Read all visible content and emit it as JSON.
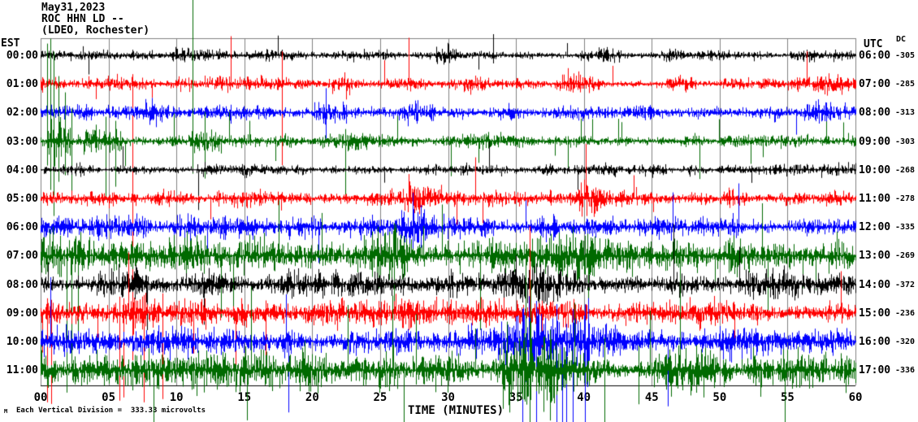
{
  "header": {
    "date": "May31,2023",
    "station": "ROC HHN LD --",
    "network": "(LDEO, Rochester)"
  },
  "axes": {
    "left_timezone_label": "EST",
    "right_timezone_label": "UTC",
    "dc_column_label": "DC",
    "xlabel": "TIME (MINUTES)",
    "x_ticks": [
      "00",
      "05",
      "10",
      "15",
      "20",
      "25",
      "30",
      "35",
      "40",
      "45",
      "50",
      "55",
      "60"
    ]
  },
  "footer": {
    "scale_note": "Each Vertical Division =  333.33 microvolts",
    "logo_mark": "M"
  },
  "colors": {
    "background": "#ffffff",
    "grid": "#808080",
    "axis": "#000000",
    "trace_cycle": [
      "#000000",
      "#ff0000",
      "#0000ff",
      "#006a00"
    ]
  },
  "chart_data": {
    "type": "line",
    "subtype": "helicorder-seismogram",
    "x_range_minutes": [
      0,
      60
    ],
    "minutes_per_row": 60,
    "row_spacing_px": 35.2,
    "note": "12 one-hour seismic trace rows, colors cycling black/red/blue/green; amplitudes and bursts are envelope estimates read from the plot",
    "rows": [
      {
        "est": "00:00",
        "utc": "06:00",
        "dc": "-305",
        "color": "#000000",
        "amp": 7,
        "tail": 0.004,
        "bursts": [
          {
            "s": 9.5,
            "e": 11,
            "m": 1.8
          },
          {
            "s": 29,
            "e": 31,
            "m": 1.6
          },
          {
            "s": 41,
            "e": 43,
            "m": 1.5
          },
          {
            "s": 55,
            "e": 57,
            "m": 1.6
          }
        ],
        "spikes": [
          {
            "min": 33.3,
            "up": 26,
            "down": 10
          }
        ]
      },
      {
        "est": "01:00",
        "utc": "07:00",
        "dc": "-285",
        "color": "#ff0000",
        "amp": 8,
        "tail": 0.004,
        "bursts": [
          {
            "s": 4.5,
            "e": 6,
            "m": 1.7
          },
          {
            "s": 12,
            "e": 14,
            "m": 1.8
          },
          {
            "s": 21,
            "e": 23,
            "m": 1.7
          },
          {
            "s": 31,
            "e": 33,
            "m": 1.6
          },
          {
            "s": 38,
            "e": 40,
            "m": 1.7
          },
          {
            "s": 47,
            "e": 49,
            "m": 1.6
          },
          {
            "s": 57,
            "e": 59,
            "m": 1.5
          }
        ],
        "spikes": [
          {
            "min": 6.78,
            "up": 12,
            "down": 340
          },
          {
            "min": 17.76,
            "up": 40,
            "down": 100
          }
        ]
      },
      {
        "est": "02:00",
        "utc": "08:00",
        "dc": "-313",
        "color": "#0000ff",
        "amp": 9,
        "tail": 0.004,
        "bursts": [
          {
            "s": 7,
            "e": 9,
            "m": 1.5
          },
          {
            "s": 20,
            "e": 22.5,
            "m": 2.2
          },
          {
            "s": 27,
            "e": 29,
            "m": 1.5
          },
          {
            "s": 43,
            "e": 45,
            "m": 1.4
          },
          {
            "s": 56,
            "e": 58,
            "m": 1.5
          }
        ],
        "spikes": [
          {
            "min": 21.0,
            "up": 30,
            "down": 32
          }
        ]
      },
      {
        "est": "03:00",
        "utc": "09:00",
        "dc": "-303",
        "color": "#006a00",
        "amp": 8,
        "tail": 0.012,
        "bursts": [
          {
            "s": 0.3,
            "e": 2.2,
            "m": 3.2
          },
          {
            "s": 3,
            "e": 6,
            "m": 2.4
          },
          {
            "s": 11,
            "e": 13.5,
            "m": 2.0
          },
          {
            "s": 22,
            "e": 24,
            "m": 1.6
          },
          {
            "s": 31,
            "e": 33,
            "m": 1.5
          },
          {
            "s": 47,
            "e": 49,
            "m": 1.4
          }
        ],
        "spikes": [
          {
            "min": 0.5,
            "up": 120,
            "down": 30
          },
          {
            "min": 0.72,
            "up": 126,
            "down": 60
          },
          {
            "min": 0.95,
            "up": 110,
            "down": 92
          },
          {
            "min": 1.3,
            "up": 80,
            "down": 50
          },
          {
            "min": 1.8,
            "up": 60,
            "down": 42
          },
          {
            "min": 2.3,
            "up": 40,
            "down": 62
          },
          {
            "min": 4.8,
            "up": 30,
            "down": 72
          },
          {
            "min": 5.5,
            "up": 25,
            "down": 56
          },
          {
            "min": 11.19,
            "up": 178,
            "down": 40
          },
          {
            "min": 12.1,
            "up": 36,
            "down": 46
          }
        ]
      },
      {
        "est": "04:00",
        "utc": "10:00",
        "dc": "-268",
        "color": "#000000",
        "amp": 7,
        "tail": 0.004,
        "bursts": [
          {
            "s": 11.5,
            "e": 13,
            "m": 1.8
          },
          {
            "s": 21,
            "e": 22,
            "m": 1.4
          },
          {
            "s": 33,
            "e": 34.5,
            "m": 1.5
          }
        ],
        "spikes": []
      },
      {
        "est": "05:00",
        "utc": "11:00",
        "dc": "-278",
        "color": "#ff0000",
        "amp": 10,
        "tail": 0.005,
        "bursts": [
          {
            "s": 5,
            "e": 7,
            "m": 1.5
          },
          {
            "s": 16,
            "e": 18,
            "m": 1.5
          },
          {
            "s": 27,
            "e": 29.5,
            "m": 1.8
          },
          {
            "s": 39.5,
            "e": 41.5,
            "m": 1.7
          },
          {
            "s": 50,
            "e": 52,
            "m": 1.5
          }
        ],
        "spikes": []
      },
      {
        "est": "06:00",
        "utc": "12:00",
        "dc": "-335",
        "color": "#0000ff",
        "amp": 13,
        "tail": 0.006,
        "bursts": [
          {
            "s": 10,
            "e": 12,
            "m": 1.4
          },
          {
            "s": 26.5,
            "e": 28.5,
            "m": 2.3
          },
          {
            "s": 36,
            "e": 38,
            "m": 1.5
          },
          {
            "s": 47,
            "e": 49,
            "m": 1.4
          },
          {
            "s": 55,
            "e": 57,
            "m": 1.5
          }
        ],
        "spikes": [
          {
            "min": 27.4,
            "up": 42,
            "down": 40
          }
        ]
      },
      {
        "est": "07:00",
        "utc": "13:00",
        "dc": "-269",
        "color": "#006a00",
        "amp": 22,
        "tail": 0.015,
        "bursts": [
          {
            "s": 8,
            "e": 10,
            "m": 1.3
          },
          {
            "s": 24,
            "e": 27,
            "m": 1.5
          },
          {
            "s": 33,
            "e": 41,
            "m": 1.6
          },
          {
            "s": 50,
            "e": 53,
            "m": 1.3
          }
        ],
        "spikes": [
          {
            "min": 26.0,
            "up": 40,
            "down": 60
          }
        ]
      },
      {
        "est": "08:00",
        "utc": "14:00",
        "dc": "-372",
        "color": "#000000",
        "amp": 16,
        "tail": 0.008,
        "bursts": [
          {
            "s": 5,
            "e": 8,
            "m": 1.3
          },
          {
            "s": 20,
            "e": 23,
            "m": 1.3
          },
          {
            "s": 34,
            "e": 40,
            "m": 1.5
          },
          {
            "s": 52,
            "e": 55,
            "m": 1.3
          }
        ],
        "spikes": []
      },
      {
        "est": "09:00",
        "utc": "15:00",
        "dc": "-236",
        "color": "#ff0000",
        "amp": 16,
        "tail": 0.008,
        "bursts": [
          {
            "s": 6,
            "e": 9,
            "m": 1.8
          },
          {
            "s": 17,
            "e": 20,
            "m": 1.3
          },
          {
            "s": 35,
            "e": 40,
            "m": 1.4
          },
          {
            "s": 48,
            "e": 51,
            "m": 1.3
          }
        ],
        "spikes": [
          {
            "min": 0.45,
            "up": 18,
            "down": 110
          },
          {
            "min": 0.75,
            "up": 16,
            "down": 112
          },
          {
            "min": 5.8,
            "up": 20,
            "down": 108
          },
          {
            "min": 6.1,
            "up": 18,
            "down": 104
          },
          {
            "min": 7.6,
            "up": 22,
            "down": 110
          },
          {
            "min": 9.0,
            "up": 24,
            "down": 106
          }
        ]
      },
      {
        "est": "10:00",
        "utc": "16:00",
        "dc": "-320",
        "color": "#0000ff",
        "amp": 18,
        "tail": 0.01,
        "bursts": [
          {
            "s": 12,
            "e": 15,
            "m": 1.3
          },
          {
            "s": 26,
            "e": 28,
            "m": 1.6
          },
          {
            "s": 33,
            "e": 40.5,
            "m": 2.5
          },
          {
            "s": 50,
            "e": 53,
            "m": 1.3
          }
        ],
        "spikes": [
          {
            "min": 35.5,
            "up": 40,
            "down": 140
          },
          {
            "min": 36.5,
            "up": 50,
            "down": 160
          },
          {
            "min": 38,
            "up": 46,
            "down": 120
          },
          {
            "min": 39.2,
            "up": 40,
            "down": 100
          }
        ]
      },
      {
        "est": "11:00",
        "utc": "17:00",
        "dc": "-336",
        "color": "#006a00",
        "amp": 22,
        "tail": 0.018,
        "bursts": [
          {
            "s": 2,
            "e": 5,
            "m": 1.3
          },
          {
            "s": 11,
            "e": 14,
            "m": 1.5
          },
          {
            "s": 19,
            "e": 21,
            "m": 1.4
          },
          {
            "s": 34,
            "e": 41,
            "m": 1.9
          },
          {
            "s": 53,
            "e": 57,
            "m": 1.4
          }
        ],
        "spikes": [
          {
            "min": 36,
            "up": 60,
            "down": 70
          },
          {
            "min": 37.5,
            "up": 50,
            "down": 62
          },
          {
            "min": 41.5,
            "up": 40,
            "down": 80
          },
          {
            "min": 44,
            "up": 30,
            "down": 42
          }
        ]
      }
    ]
  }
}
